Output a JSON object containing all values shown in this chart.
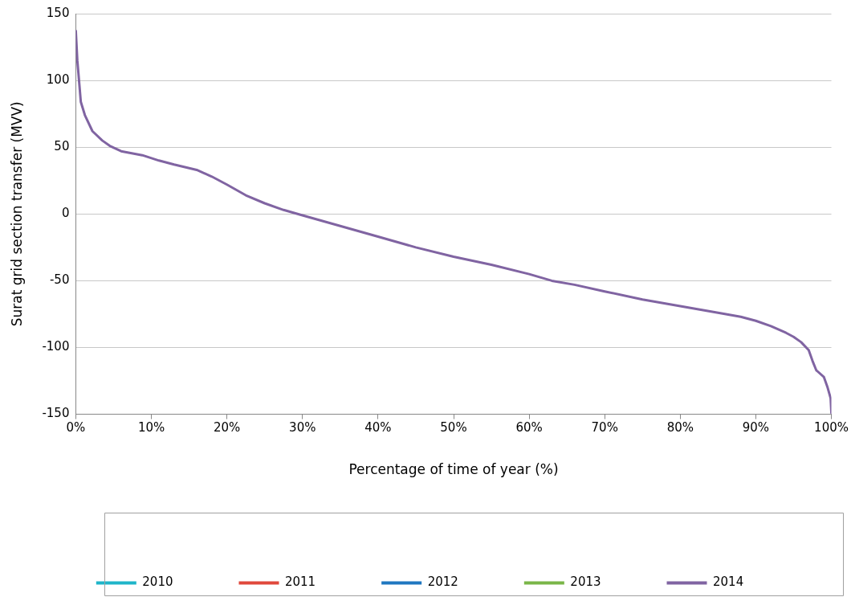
{
  "chart_data": {
    "type": "line",
    "xlabel": "Percentage of time of year (%)",
    "ylabel": "Surat grid section transfer (MVV)",
    "x": [
      0,
      0.2,
      0.66,
      1.2,
      2.2,
      3.5,
      4.5,
      6,
      8.8,
      11,
      13,
      16,
      18,
      20,
      22.5,
      25,
      27.5,
      30,
      35,
      40,
      45,
      50,
      55,
      60,
      63,
      66,
      70,
      75,
      80,
      85,
      88,
      90,
      92,
      94,
      95,
      96,
      97,
      97.5,
      98,
      99,
      99.5,
      99.9,
      100
    ],
    "series": [
      {
        "name": "2010",
        "color": "#1fb5c9",
        "values": [
          null,
          null,
          null,
          null,
          null,
          null,
          null,
          null,
          null,
          null,
          null,
          null,
          null,
          null,
          null,
          null,
          null,
          null,
          null,
          null,
          null,
          null,
          null,
          null,
          null,
          null,
          null,
          null,
          null,
          null,
          null,
          null,
          null,
          null,
          null,
          null,
          null,
          null,
          null,
          null,
          null,
          null,
          null
        ]
      },
      {
        "name": "2011",
        "color": "#e0483c",
        "values": [
          null,
          null,
          null,
          null,
          null,
          null,
          null,
          null,
          null,
          null,
          null,
          null,
          null,
          null,
          null,
          null,
          null,
          null,
          null,
          null,
          null,
          null,
          null,
          null,
          null,
          null,
          null,
          null,
          null,
          null,
          null,
          null,
          null,
          null,
          null,
          null,
          null,
          null,
          null,
          null,
          null,
          null,
          null
        ]
      },
      {
        "name": "2012",
        "color": "#1f77c0",
        "values": [
          null,
          null,
          null,
          null,
          null,
          null,
          null,
          null,
          null,
          null,
          null,
          null,
          null,
          null,
          null,
          null,
          null,
          null,
          null,
          null,
          null,
          null,
          null,
          null,
          null,
          null,
          null,
          null,
          null,
          null,
          null,
          null,
          null,
          null,
          null,
          null,
          null,
          null,
          null,
          null,
          null,
          null,
          null
        ]
      },
      {
        "name": "2013",
        "color": "#7ab648",
        "values": [
          null,
          null,
          null,
          null,
          null,
          null,
          null,
          null,
          null,
          null,
          null,
          null,
          null,
          null,
          null,
          null,
          null,
          null,
          null,
          null,
          null,
          null,
          null,
          null,
          null,
          null,
          null,
          null,
          null,
          null,
          null,
          null,
          null,
          null,
          null,
          null,
          null,
          null,
          null,
          null,
          null,
          null,
          null
        ]
      },
      {
        "name": "2014",
        "color": "#8064a2",
        "values": [
          137,
          115,
          84,
          74,
          62,
          55,
          51,
          47,
          44,
          40,
          37,
          33,
          28,
          22,
          14,
          8,
          3,
          -1,
          -9,
          -17,
          -25,
          -32,
          -38,
          -45,
          -50,
          -53,
          -58,
          -64,
          -69,
          -74,
          -77,
          -80,
          -84,
          -89,
          -92,
          -96,
          -102,
          -110,
          -117,
          -122,
          -130,
          -138,
          -149
        ]
      }
    ],
    "xlim": [
      0,
      100
    ],
    "xticks": [
      {
        "value": 0,
        "label": "0%"
      },
      {
        "value": 10,
        "label": "10%"
      },
      {
        "value": 20,
        "label": "20%"
      },
      {
        "value": 30,
        "label": "30%"
      },
      {
        "value": 40,
        "label": "40%"
      },
      {
        "value": 50,
        "label": "50%"
      },
      {
        "value": 60,
        "label": "60%"
      },
      {
        "value": 70,
        "label": "70%"
      },
      {
        "value": 80,
        "label": "80%"
      },
      {
        "value": 90,
        "label": "90%"
      },
      {
        "value": 100,
        "label": "100%"
      }
    ],
    "ylim": [
      -150,
      150
    ],
    "yticks": [
      -150,
      -100,
      -50,
      0,
      50,
      100,
      150
    ],
    "grid": "y",
    "legend": "bottom",
    "marker": "none",
    "line_style": "solid"
  }
}
